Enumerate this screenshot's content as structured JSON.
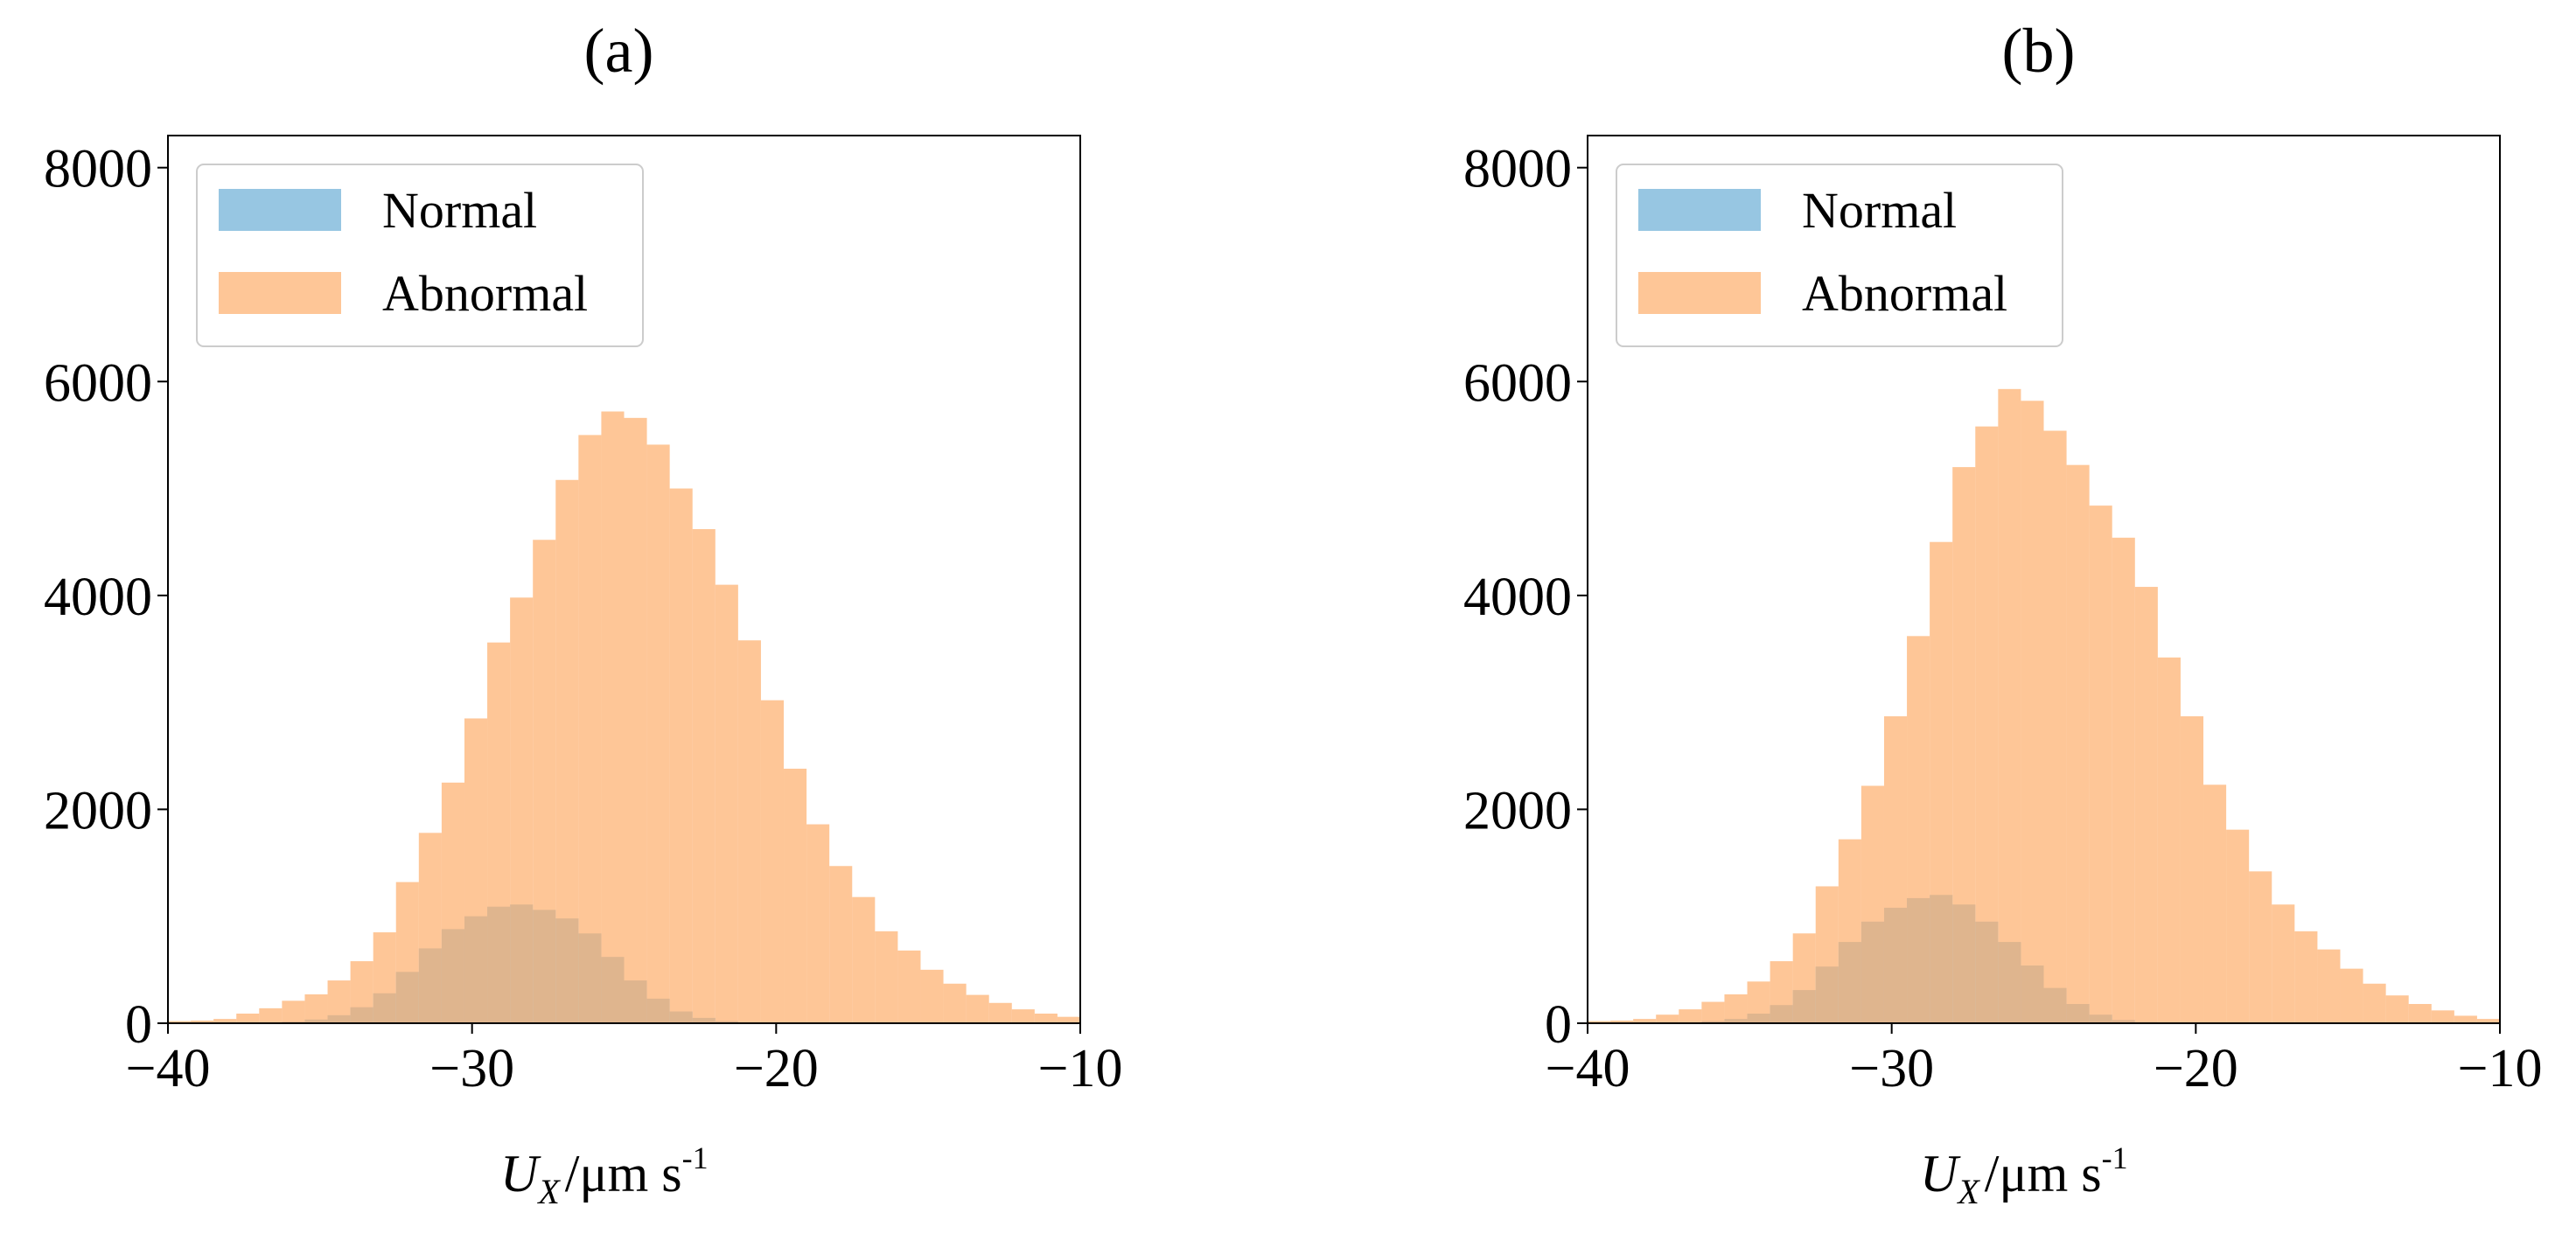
{
  "chart_data": [
    {
      "type": "histogram",
      "panel_label": "(a)",
      "xlabel": {
        "symbol": "U",
        "subscript": "X",
        "unit": "/μm s",
        "superscript": "-1"
      },
      "ylabel": "",
      "xlim": [
        -40,
        -10
      ],
      "ylim": [
        0,
        8300
      ],
      "xticks": [
        -40,
        -30,
        -20,
        -10
      ],
      "xtick_labels": [
        "−40",
        "−30",
        "−20",
        "−10"
      ],
      "yticks": [
        0,
        2000,
        4000,
        6000,
        8000
      ],
      "ytick_labels": [
        "0",
        "2000",
        "4000",
        "6000",
        "8000"
      ],
      "grid": false,
      "legend_position": "top-left",
      "bin_edges_start": -40,
      "bin_width": 0.75,
      "series": [
        {
          "name": "Normal",
          "color": "#6baed6",
          "values": [
            0,
            0,
            0,
            0,
            5,
            15,
            35,
            75,
            150,
            280,
            480,
            700,
            880,
            1000,
            1090,
            1110,
            1060,
            980,
            840,
            620,
            400,
            230,
            110,
            50,
            20,
            8,
            3,
            0,
            0,
            0,
            0,
            0,
            0,
            0,
            0,
            0,
            0,
            0,
            0,
            0
          ]
        },
        {
          "name": "Abnormal",
          "color": "#fdae6b",
          "values": [
            20,
            25,
            40,
            90,
            140,
            210,
            270,
            400,
            580,
            850,
            1320,
            1780,
            2250,
            2850,
            3560,
            3980,
            4520,
            5080,
            5500,
            5720,
            5660,
            5410,
            5000,
            4620,
            4100,
            3580,
            3020,
            2380,
            1860,
            1470,
            1180,
            860,
            680,
            500,
            370,
            265,
            190,
            130,
            90,
            60
          ]
        }
      ]
    },
    {
      "type": "histogram",
      "panel_label": "(b)",
      "xlabel": {
        "symbol": "U",
        "subscript": "X",
        "unit": "/μm s",
        "superscript": "-1"
      },
      "ylabel": "",
      "xlim": [
        -40,
        -10
      ],
      "ylim": [
        0,
        8300
      ],
      "xticks": [
        -40,
        -30,
        -20,
        -10
      ],
      "xtick_labels": [
        "−40",
        "−30",
        "−20",
        "−10"
      ],
      "yticks": [
        0,
        2000,
        4000,
        6000,
        8000
      ],
      "ytick_labels": [
        "0",
        "2000",
        "4000",
        "6000",
        "8000"
      ],
      "grid": false,
      "legend_position": "top-left",
      "bin_edges_start": -40,
      "bin_width": 0.75,
      "series": [
        {
          "name": "Normal",
          "color": "#6baed6",
          "values": [
            0,
            0,
            0,
            0,
            5,
            20,
            40,
            90,
            170,
            310,
            530,
            760,
            950,
            1080,
            1170,
            1200,
            1110,
            950,
            760,
            540,
            330,
            180,
            80,
            30,
            10,
            3,
            0,
            0,
            0,
            0,
            0,
            0,
            0,
            0,
            0,
            0,
            0,
            0,
            0,
            0
          ]
        },
        {
          "name": "Abnormal",
          "color": "#fdae6b",
          "values": [
            20,
            25,
            40,
            80,
            130,
            200,
            270,
            390,
            580,
            840,
            1280,
            1720,
            2220,
            2870,
            3620,
            4500,
            5200,
            5580,
            5930,
            5820,
            5540,
            5220,
            4840,
            4540,
            4080,
            3420,
            2870,
            2230,
            1810,
            1420,
            1110,
            860,
            690,
            510,
            370,
            260,
            180,
            120,
            70,
            40
          ]
        }
      ]
    }
  ]
}
